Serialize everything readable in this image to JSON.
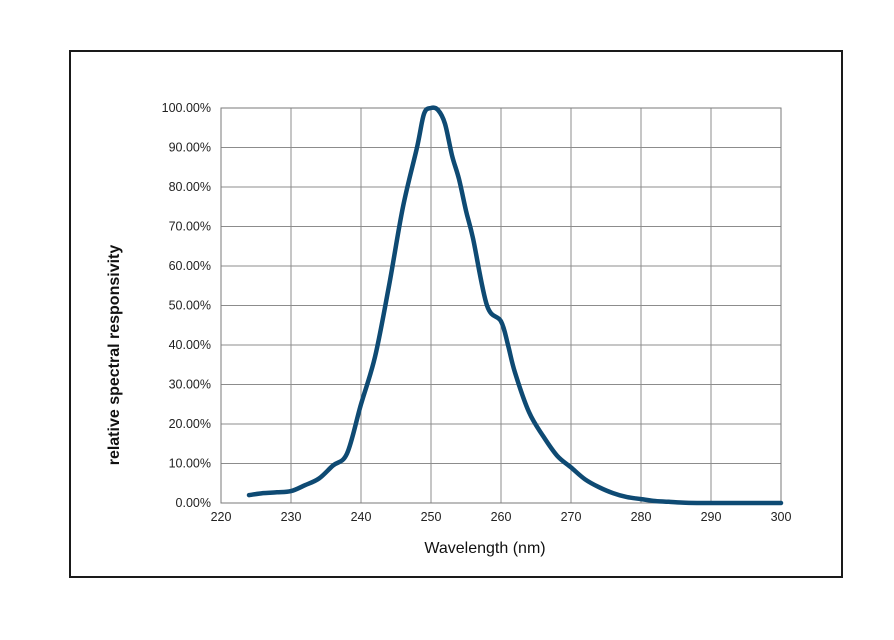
{
  "chart_data": {
    "type": "line",
    "title": "",
    "xlabel": "Wavelength (nm)",
    "ylabel": "relative spectral responsivity",
    "xlim": [
      220,
      300
    ],
    "ylim": [
      0,
      100
    ],
    "x_ticks": [
      "220",
      "230",
      "240",
      "250",
      "260",
      "270",
      "280",
      "290",
      "300"
    ],
    "y_ticks": [
      "0.00%",
      "10.00%",
      "20.00%",
      "30.00%",
      "40.00%",
      "50.00%",
      "60.00%",
      "70.00%",
      "80.00%",
      "90.00%",
      "100.00%"
    ],
    "grid": true,
    "legend": "none",
    "series": [
      {
        "color": "#0e4a73",
        "x": [
          224,
          226,
          228,
          230,
          232,
          234,
          236,
          238,
          240,
          242,
          244,
          246,
          248,
          249,
          250,
          251,
          252,
          253,
          254,
          255,
          256,
          258,
          260,
          261,
          262,
          264,
          266,
          268,
          270,
          272,
          274,
          276,
          278,
          280,
          282,
          284,
          286,
          288,
          290,
          292,
          295,
          298,
          300
        ],
        "y": [
          2,
          2.5,
          2.7,
          3,
          4.5,
          6.2,
          9.5,
          12.5,
          25,
          37,
          55,
          75,
          90,
          98.5,
          100,
          99.5,
          96,
          88,
          82,
          74,
          67,
          50,
          46,
          40,
          33,
          23,
          17,
          12,
          9,
          6,
          4,
          2.5,
          1.5,
          1,
          0.5,
          0.3,
          0.1,
          0,
          0,
          0,
          0,
          0,
          0
        ]
      }
    ]
  }
}
